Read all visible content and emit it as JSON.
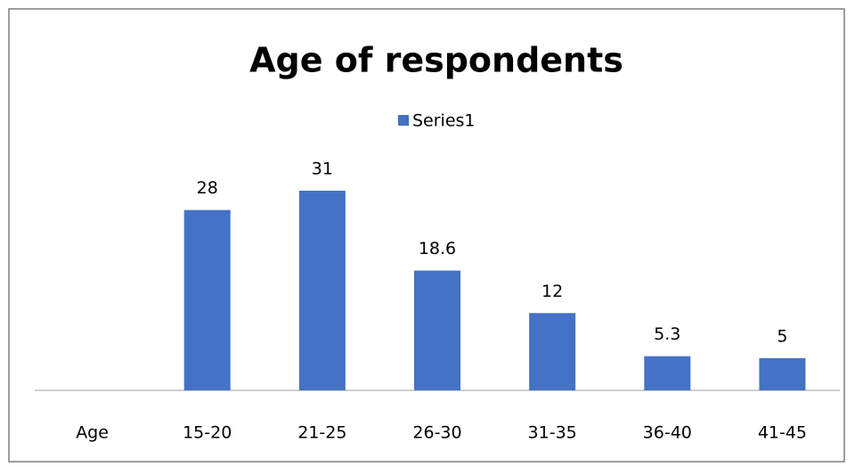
{
  "chart_data": {
    "type": "bar",
    "title": "Age of respondents",
    "categories": [
      "Age",
      "15-20",
      "21-25",
      "26-30",
      "31-35",
      "36-40",
      "41-45"
    ],
    "series": [
      {
        "name": "Series1",
        "color": "#4472c4",
        "values": [
          null,
          28,
          31,
          18.6,
          12,
          5.3,
          5
        ]
      }
    ],
    "legend": "top"
  }
}
